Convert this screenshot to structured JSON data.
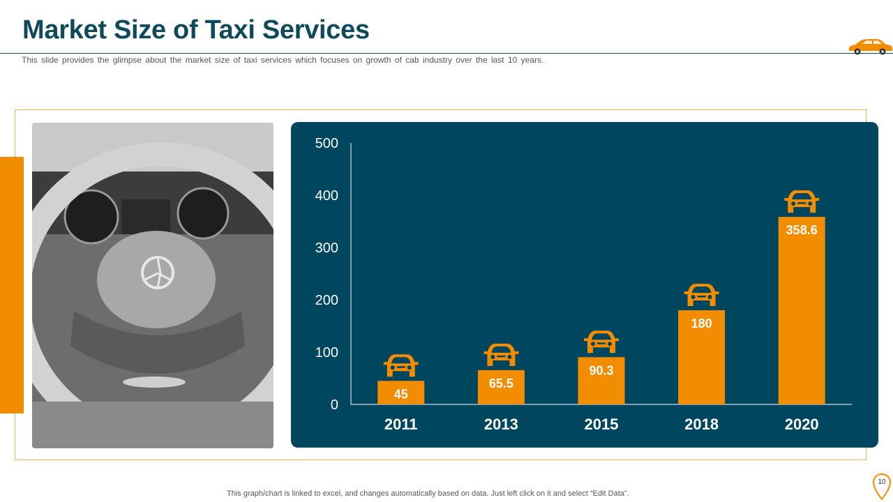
{
  "header": {
    "title": "Market Size of Taxi Services",
    "subtitle": "This slide provides  the glimpse about the market size of taxi services which focuses on growth of cab industry over the last 10 years."
  },
  "footer": {
    "note": "This graph/chart is linked to excel,  and changes automatically based on data. Just left click on it and select “Edit Data”.",
    "page_number": "10"
  },
  "colors": {
    "brand_teal": "#0f4a5c",
    "panel_bg": "#00465f",
    "accent_orange": "#f28c00"
  },
  "icons": {
    "header_logo": "car-icon",
    "bar_topper": "taxi-front-icon",
    "page_marker": "location-pin-icon"
  },
  "chart_data": {
    "type": "bar",
    "categories": [
      "2011",
      "2013",
      "2015",
      "2018",
      "2020"
    ],
    "values": [
      45,
      65.5,
      90.3,
      180,
      358.6
    ],
    "value_labels": [
      "45",
      "65.5",
      "90.3",
      "180",
      "358.6"
    ],
    "yticks": [
      "0",
      "100",
      "200",
      "300",
      "400",
      "500"
    ],
    "ylim": [
      0,
      500
    ],
    "title": "",
    "xlabel": "",
    "ylabel": ""
  }
}
